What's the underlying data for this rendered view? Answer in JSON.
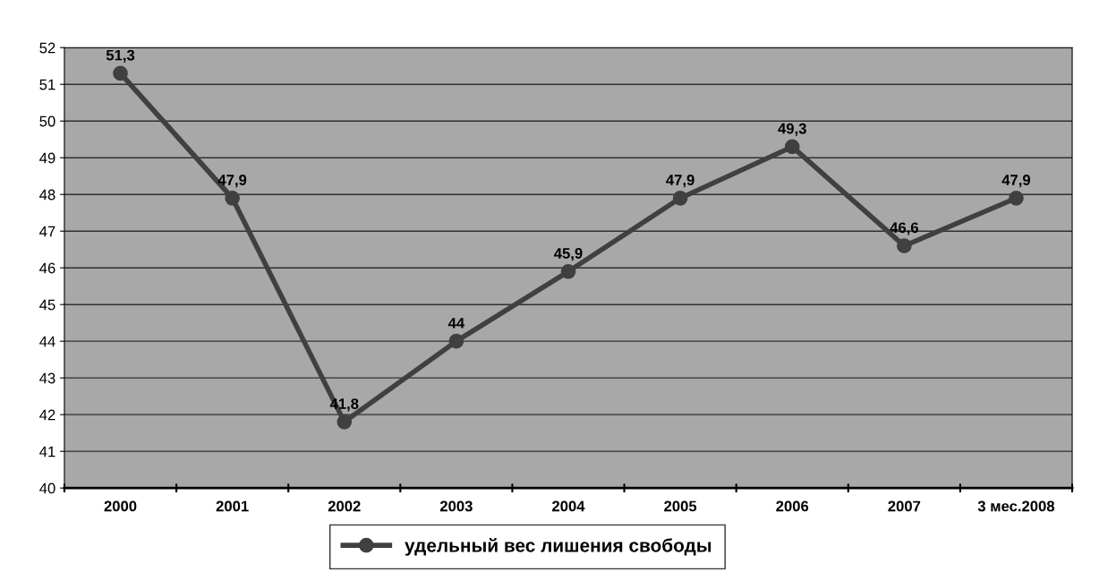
{
  "chart_data": {
    "type": "line",
    "categories": [
      "2000",
      "2001",
      "2002",
      "2003",
      "2004",
      "2005",
      "2006",
      "2007",
      "3 мес.2008"
    ],
    "series": [
      {
        "name": "удельный вес лишения свободы",
        "color": "#404040",
        "values": [
          51.3,
          47.9,
          41.8,
          44,
          45.9,
          47.9,
          49.3,
          46.6,
          47.9
        ],
        "value_labels": [
          "51,3",
          "47,9",
          "41,8",
          "44",
          "45,9",
          "47,9",
          "49,3",
          "46,6",
          "47,9"
        ]
      }
    ],
    "ylim": [
      40,
      52
    ],
    "yticks": [
      40,
      41,
      42,
      43,
      44,
      45,
      46,
      47,
      48,
      49,
      50,
      51,
      52
    ],
    "grid": "y",
    "legend": "bottom",
    "marker": "circle",
    "line_style": "solid"
  }
}
